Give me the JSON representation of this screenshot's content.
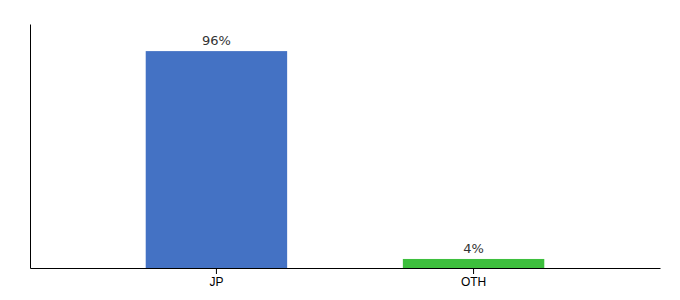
{
  "chart_data": {
    "type": "bar",
    "categories": [
      "JP",
      "OTH"
    ],
    "values": [
      96,
      4
    ],
    "value_labels": [
      "96%",
      "4%"
    ],
    "colors": [
      "#4472c4",
      "#3dbf3d"
    ],
    "ylim": [
      0,
      108
    ],
    "data_labels": true,
    "tick_labels": "x",
    "grid": false
  }
}
